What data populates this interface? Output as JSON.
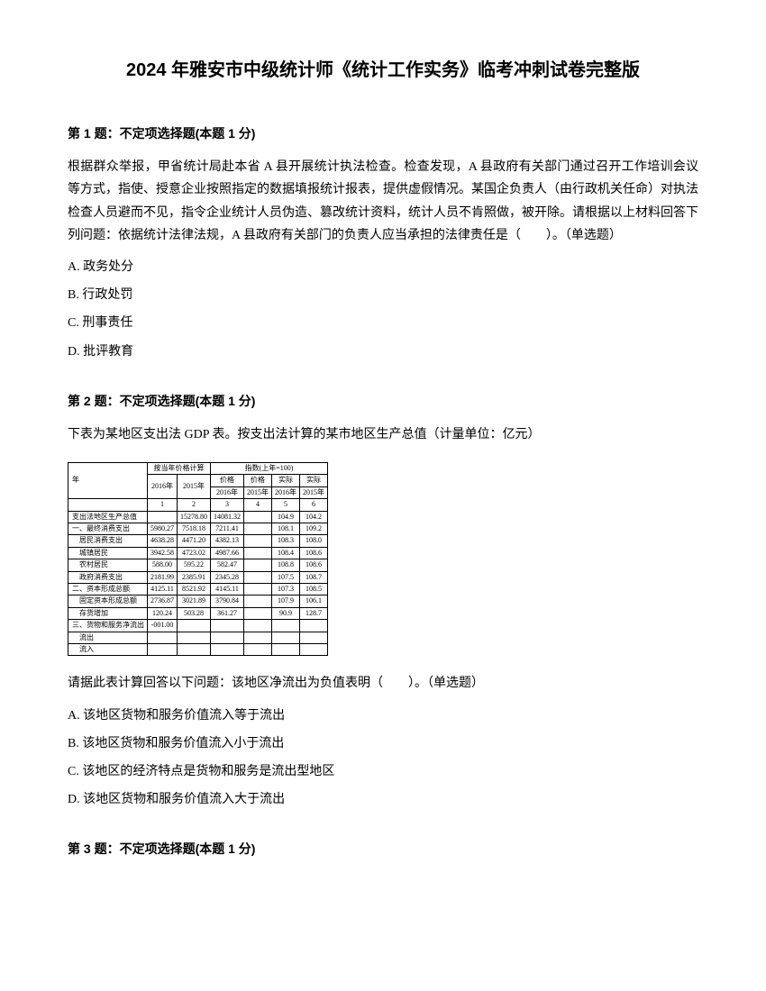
{
  "title": "2024 年雅安市中级统计师《统计工作实务》临考冲刺试卷完整版",
  "q1": {
    "header": "第 1 题：不定项选择题(本题 1 分)",
    "body": "根据群众举报，甲省统计局赴本省 A 县开展统计执法检查。检查发现，A 县政府有关部门通过召开工作培训会议等方式，指使、授意企业按照指定的数据填报统计报表，提供虚假情况。某国企负责人（由行政机关任命）对执法检查人员避而不见，指令企业统计人员伪造、篡改统计资料，统计人员不肯照做，被开除。请根据以上材料回答下列问题：依据统计法律法规，A 县政府有关部门的负责人应当承担的法律责任是（　　）。（单选题）",
    "options": {
      "a": "A. 政务处分",
      "b": "B. 行政处罚",
      "c": "C. 刑事责任",
      "d": "D. 批评教育"
    }
  },
  "q2": {
    "header": "第 2 题：不定项选择题(本题 1 分)",
    "intro": "下表为某地区支出法 GDP 表。按支出法计算的某市地区生产总值（计量单位：亿元）",
    "table": {
      "col_headers": {
        "group1": "按当年价格计算",
        "group2": "指数(上年=100)",
        "year": "年",
        "y2016_1": "2016年",
        "y2015_1": "2015年",
        "sub3": "价格",
        "sub4": "价格",
        "sub5": "实际",
        "sub6": "实际",
        "y2016_2": "2016年",
        "y2015_2": "2015年",
        "y2016_3": "2016年",
        "y2015_3": "2015年",
        "n1": "1",
        "n2": "2",
        "n3": "3",
        "n4": "4",
        "n5": "5",
        "n6": "6"
      },
      "rows": [
        {
          "label": "支出法地区生产总值",
          "v1": "",
          "v2": "15278.80",
          "v3": "14081.32",
          "v4": "",
          "v5": "104.9",
          "v6": "104.2"
        },
        {
          "label": "一、最终消费支出",
          "v1": "5980.27",
          "v2": "7518.18",
          "v3": "7211.41",
          "v4": "",
          "v5": "108.1",
          "v6": "109.2"
        },
        {
          "label": "居民消费支出",
          "v1": "4638.28",
          "v2": "4471.20",
          "v3": "4382.13",
          "v4": "",
          "v5": "108.3",
          "v6": "108.0",
          "indent": true
        },
        {
          "label": "城镇居民",
          "v1": "3942.58",
          "v2": "4723.02",
          "v3": "4987.66",
          "v4": "",
          "v5": "108.4",
          "v6": "108.6",
          "indent": true
        },
        {
          "label": "农村居民",
          "v1": "588.00",
          "v2": "595.22",
          "v3": "582.47",
          "v4": "",
          "v5": "108.8",
          "v6": "108.6",
          "indent": true
        },
        {
          "label": "政府消费支出",
          "v1": "2181.99",
          "v2": "2385.91",
          "v3": "2345.28",
          "v4": "",
          "v5": "107.5",
          "v6": "108.7",
          "indent": true
        },
        {
          "label": "二、资本形成总额",
          "v1": "4125.11",
          "v2": "8521.92",
          "v3": "4145.11",
          "v4": "",
          "v5": "107.3",
          "v6": "108.5"
        },
        {
          "label": "固定资本形成总额",
          "v1": "2736.87",
          "v2": "3021.89",
          "v3": "3790.84",
          "v4": "",
          "v5": "107.9",
          "v6": "106.1",
          "indent": true
        },
        {
          "label": "存货增加",
          "v1": "120.24",
          "v2": "503.28",
          "v3": "361.27",
          "v4": "",
          "v5": "90.9",
          "v6": "128.7",
          "indent": true
        },
        {
          "label": "三、货物和服务净流出",
          "v1": "-001.00",
          "v2": "",
          "v3": "",
          "v4": "",
          "v5": "",
          "v6": ""
        },
        {
          "label": "流出",
          "v1": "",
          "v2": "",
          "v3": "",
          "v4": "",
          "v5": "",
          "v6": "",
          "indent": true
        },
        {
          "label": "流入",
          "v1": "",
          "v2": "",
          "v3": "",
          "v4": "",
          "v5": "",
          "v6": "",
          "indent": true
        }
      ]
    },
    "body": "请据此表计算回答以下问题：该地区净流出为负值表明（　　）。（单选题）",
    "options": {
      "a": "A. 该地区货物和服务价值流入等于流出",
      "b": "B. 该地区货物和服务价值流入小于流出",
      "c": "C. 该地区的经济特点是货物和服务是流出型地区",
      "d": "D. 该地区货物和服务价值流入大于流出"
    }
  },
  "q3": {
    "header": "第 3 题：不定项选择题(本题 1 分)"
  }
}
